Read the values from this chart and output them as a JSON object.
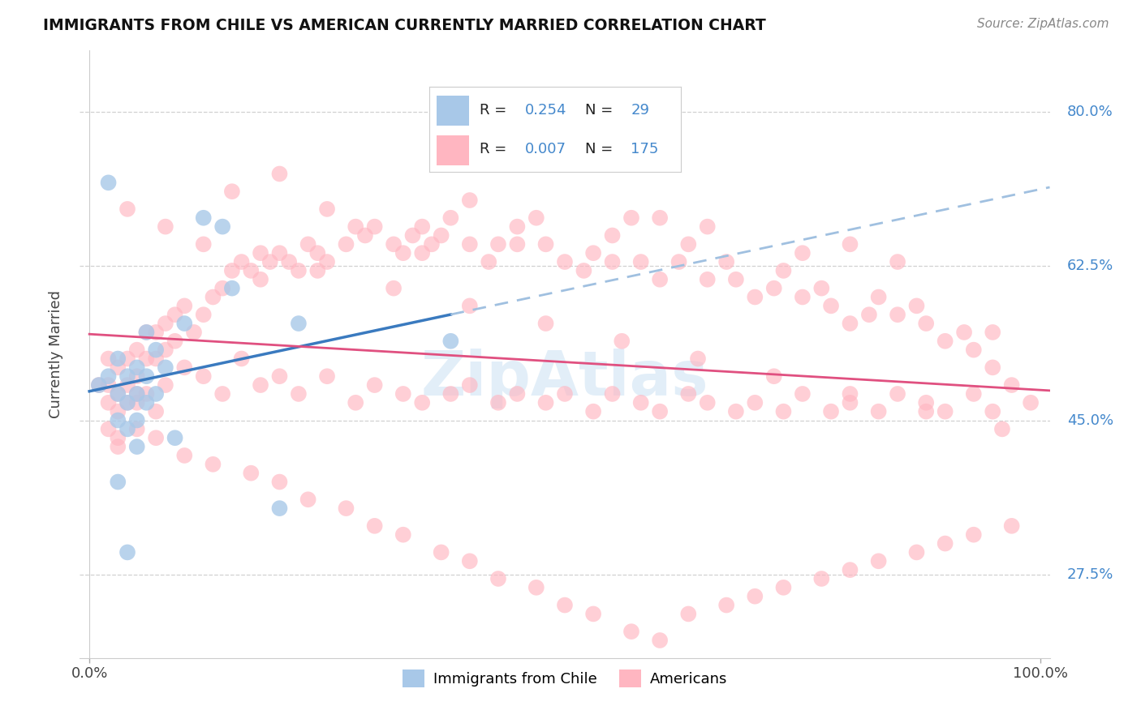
{
  "title": "IMMIGRANTS FROM CHILE VS AMERICAN CURRENTLY MARRIED CORRELATION CHART",
  "source": "Source: ZipAtlas.com",
  "ylabel": "Currently Married",
  "yticks": [
    0.275,
    0.45,
    0.625,
    0.8
  ],
  "ytick_labels": [
    "27.5%",
    "45.0%",
    "62.5%",
    "80.0%"
  ],
  "xlim": [
    -0.01,
    1.01
  ],
  "ylim": [
    0.18,
    0.87
  ],
  "xtick_labels": [
    "0.0%",
    "100.0%"
  ],
  "blue_color": "#a8c8e8",
  "pink_color": "#ffb6c1",
  "trendline_blue_color": "#3a7abf",
  "trendline_pink_color": "#e05080",
  "dashed_color": "#a0c0e0",
  "watermark": "ZipAtlas",
  "blue_scatter_x": [
    0.01,
    0.02,
    0.02,
    0.03,
    0.03,
    0.03,
    0.03,
    0.04,
    0.04,
    0.04,
    0.04,
    0.05,
    0.05,
    0.05,
    0.05,
    0.06,
    0.06,
    0.06,
    0.07,
    0.07,
    0.08,
    0.09,
    0.1,
    0.12,
    0.14,
    0.15,
    0.2,
    0.22,
    0.38
  ],
  "blue_scatter_y": [
    0.49,
    0.72,
    0.5,
    0.52,
    0.48,
    0.45,
    0.38,
    0.5,
    0.47,
    0.44,
    0.3,
    0.51,
    0.48,
    0.45,
    0.42,
    0.55,
    0.5,
    0.47,
    0.53,
    0.48,
    0.51,
    0.43,
    0.56,
    0.68,
    0.67,
    0.6,
    0.35,
    0.56,
    0.54
  ],
  "pink_scatter_x": [
    0.01,
    0.02,
    0.02,
    0.02,
    0.02,
    0.03,
    0.03,
    0.03,
    0.03,
    0.04,
    0.04,
    0.04,
    0.05,
    0.05,
    0.05,
    0.06,
    0.06,
    0.07,
    0.07,
    0.08,
    0.08,
    0.09,
    0.09,
    0.1,
    0.11,
    0.12,
    0.13,
    0.14,
    0.15,
    0.16,
    0.17,
    0.18,
    0.19,
    0.2,
    0.21,
    0.22,
    0.23,
    0.24,
    0.25,
    0.27,
    0.28,
    0.29,
    0.3,
    0.32,
    0.33,
    0.34,
    0.35,
    0.36,
    0.37,
    0.38,
    0.4,
    0.42,
    0.43,
    0.45,
    0.47,
    0.48,
    0.5,
    0.52,
    0.53,
    0.55,
    0.57,
    0.58,
    0.6,
    0.62,
    0.63,
    0.65,
    0.67,
    0.68,
    0.7,
    0.72,
    0.73,
    0.75,
    0.77,
    0.78,
    0.8,
    0.82,
    0.83,
    0.85,
    0.87,
    0.88,
    0.9,
    0.92,
    0.93,
    0.95,
    0.97,
    0.99,
    0.05,
    0.06,
    0.07,
    0.08,
    0.1,
    0.12,
    0.14,
    0.16,
    0.18,
    0.2,
    0.22,
    0.25,
    0.28,
    0.3,
    0.33,
    0.35,
    0.38,
    0.4,
    0.43,
    0.45,
    0.48,
    0.5,
    0.53,
    0.55,
    0.58,
    0.6,
    0.63,
    0.65,
    0.68,
    0.7,
    0.73,
    0.75,
    0.78,
    0.8,
    0.83,
    0.85,
    0.88,
    0.9,
    0.93,
    0.95,
    0.03,
    0.05,
    0.07,
    0.1,
    0.13,
    0.17,
    0.2,
    0.23,
    0.27,
    0.3,
    0.33,
    0.37,
    0.4,
    0.43,
    0.47,
    0.5,
    0.53,
    0.57,
    0.6,
    0.63,
    0.67,
    0.7,
    0.73,
    0.77,
    0.8,
    0.83,
    0.87,
    0.9,
    0.93,
    0.97,
    0.04,
    0.08,
    0.12,
    0.18,
    0.24,
    0.32,
    0.4,
    0.48,
    0.56,
    0.64,
    0.72,
    0.8,
    0.88,
    0.96,
    0.15,
    0.25,
    0.35,
    0.45,
    0.55,
    0.65,
    0.75,
    0.85,
    0.95,
    0.2,
    0.4,
    0.6,
    0.8
  ],
  "pink_scatter_y": [
    0.49,
    0.52,
    0.49,
    0.47,
    0.44,
    0.51,
    0.48,
    0.46,
    0.43,
    0.52,
    0.49,
    0.47,
    0.53,
    0.5,
    0.48,
    0.55,
    0.52,
    0.55,
    0.52,
    0.56,
    0.53,
    0.57,
    0.54,
    0.58,
    0.55,
    0.57,
    0.59,
    0.6,
    0.62,
    0.63,
    0.62,
    0.61,
    0.63,
    0.64,
    0.63,
    0.62,
    0.65,
    0.64,
    0.63,
    0.65,
    0.67,
    0.66,
    0.67,
    0.65,
    0.64,
    0.66,
    0.64,
    0.65,
    0.66,
    0.68,
    0.65,
    0.63,
    0.65,
    0.67,
    0.68,
    0.65,
    0.63,
    0.62,
    0.64,
    0.66,
    0.68,
    0.63,
    0.61,
    0.63,
    0.65,
    0.67,
    0.63,
    0.61,
    0.59,
    0.6,
    0.62,
    0.64,
    0.6,
    0.58,
    0.56,
    0.57,
    0.59,
    0.63,
    0.58,
    0.56,
    0.54,
    0.55,
    0.53,
    0.51,
    0.49,
    0.47,
    0.47,
    0.48,
    0.46,
    0.49,
    0.51,
    0.5,
    0.48,
    0.52,
    0.49,
    0.5,
    0.48,
    0.5,
    0.47,
    0.49,
    0.48,
    0.47,
    0.48,
    0.49,
    0.47,
    0.48,
    0.47,
    0.48,
    0.46,
    0.48,
    0.47,
    0.46,
    0.48,
    0.47,
    0.46,
    0.47,
    0.46,
    0.48,
    0.46,
    0.47,
    0.46,
    0.48,
    0.47,
    0.46,
    0.48,
    0.46,
    0.42,
    0.44,
    0.43,
    0.41,
    0.4,
    0.39,
    0.38,
    0.36,
    0.35,
    0.33,
    0.32,
    0.3,
    0.29,
    0.27,
    0.26,
    0.24,
    0.23,
    0.21,
    0.2,
    0.23,
    0.24,
    0.25,
    0.26,
    0.27,
    0.28,
    0.29,
    0.3,
    0.31,
    0.32,
    0.33,
    0.69,
    0.67,
    0.65,
    0.64,
    0.62,
    0.6,
    0.58,
    0.56,
    0.54,
    0.52,
    0.5,
    0.48,
    0.46,
    0.44,
    0.71,
    0.69,
    0.67,
    0.65,
    0.63,
    0.61,
    0.59,
    0.57,
    0.55,
    0.73,
    0.7,
    0.68,
    0.65
  ]
}
